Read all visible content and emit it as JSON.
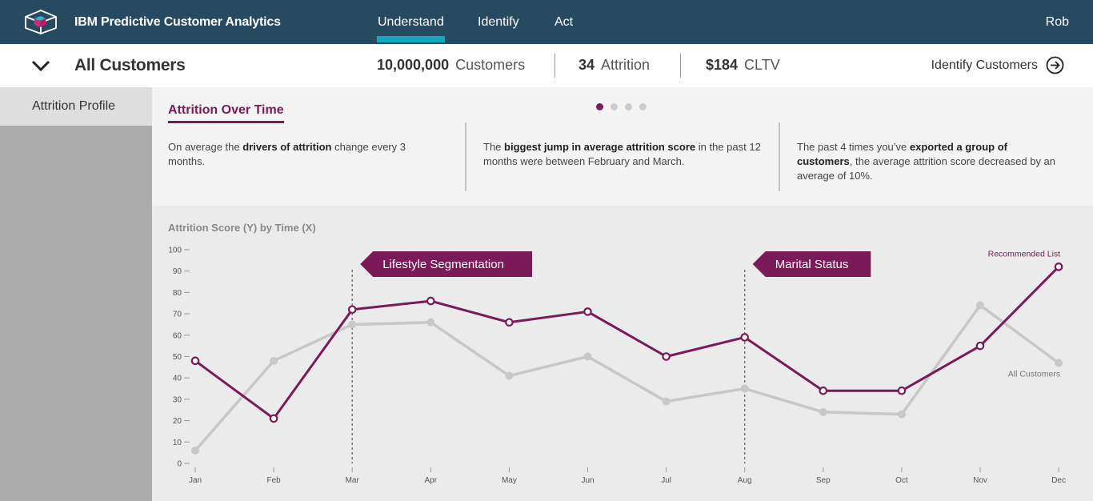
{
  "header": {
    "app_title": "IBM Predictive Customer Analytics",
    "tabs": [
      {
        "label": "Understand",
        "active": true
      },
      {
        "label": "Identify",
        "active": false
      },
      {
        "label": "Act",
        "active": false
      }
    ],
    "user": "Rob"
  },
  "summary": {
    "segment": "All Customers",
    "customers_value": "10,000,000",
    "customers_label": "Customers",
    "attrition_value": "34",
    "attrition_label": "Attrition",
    "cltv_value": "$184",
    "cltv_label": "CLTV",
    "identify_label": "Identify Customers"
  },
  "sidebar": {
    "items": [
      {
        "label": "Attrition Profile",
        "active": true
      }
    ]
  },
  "insights": {
    "title": "Attrition Over Time",
    "carousel_count": 4,
    "carousel_active": 0,
    "cards": [
      {
        "pre": "On average the ",
        "bold": "drivers of attrition",
        "post": " change every 3 months."
      },
      {
        "pre": "The ",
        "bold": "biggest jump in average attrition score",
        "post": " in the past 12 months were between February and March."
      },
      {
        "pre": "The past 4 times you’ve ",
        "bold": "exported a group of customers",
        "post": ", the average attrition score decreased by an average of 10%."
      }
    ]
  },
  "colors": {
    "nav_bg": "#264a60",
    "accent_teal": "#12a8be",
    "accent_purple": "#7a1a58",
    "grey_series": "#c8c8c8"
  },
  "chart_data": {
    "type": "line",
    "title": "Attrition Score (Y) by Time (X)",
    "x": [
      "Jan",
      "Feb",
      "Mar",
      "Apr",
      "May",
      "Jun",
      "Jul",
      "Aug",
      "Sep",
      "Oct",
      "Nov",
      "Dec"
    ],
    "ylim": [
      0,
      100
    ],
    "yticks": [
      0,
      10,
      20,
      30,
      40,
      50,
      60,
      70,
      80,
      90,
      100
    ],
    "series": [
      {
        "name": "Recommended List",
        "color": "#7a1a58",
        "values": [
          48,
          21,
          72,
          76,
          66,
          71,
          50,
          59,
          34,
          34,
          55,
          92
        ]
      },
      {
        "name": "All Customers",
        "color": "#c8c8c8",
        "values": [
          6,
          48,
          65,
          66,
          41,
          50,
          29,
          35,
          24,
          23,
          74,
          47
        ]
      }
    ],
    "annotations": [
      {
        "label": "Lifestyle Segmentation",
        "x": "Mar"
      },
      {
        "label": "Marital Status",
        "x": "Aug"
      }
    ]
  }
}
